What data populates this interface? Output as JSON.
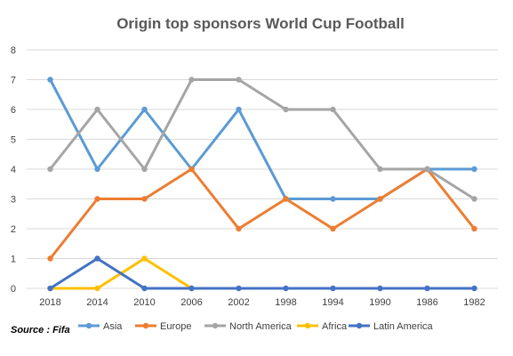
{
  "chart_data": {
    "type": "line",
    "title": "Origin top sponsors World Cup Football",
    "xlabel": "",
    "ylabel": "",
    "x": [
      "2018",
      "2014",
      "2010",
      "2006",
      "2002",
      "1998",
      "1994",
      "1990",
      "1986",
      "1982"
    ],
    "ylim": [
      0,
      8
    ],
    "yticks": [
      "0",
      "1",
      "2",
      "3",
      "4",
      "5",
      "6",
      "7",
      "8"
    ],
    "grid": true,
    "legend_position": "bottom",
    "series": [
      {
        "name": "Asia",
        "color": "#5b9bd5",
        "values": [
          7,
          4,
          6,
          4,
          6,
          3,
          3,
          3,
          4,
          4
        ]
      },
      {
        "name": "Europe",
        "color": "#ed7d31",
        "values": [
          1,
          3,
          3,
          4,
          2,
          3,
          2,
          3,
          4,
          2
        ]
      },
      {
        "name": "North America",
        "color": "#a5a5a5",
        "values": [
          4,
          6,
          4,
          7,
          7,
          6,
          6,
          4,
          4,
          3
        ]
      },
      {
        "name": "Africa",
        "color": "#ffc000",
        "values": [
          0,
          0,
          1,
          0,
          null,
          null,
          null,
          null,
          null,
          null
        ]
      },
      {
        "name": "Latin America",
        "color": "#4472c4",
        "values": [
          0,
          1,
          0,
          0,
          0,
          0,
          0,
          0,
          0,
          0
        ]
      }
    ],
    "source": "Source : Fifa"
  }
}
